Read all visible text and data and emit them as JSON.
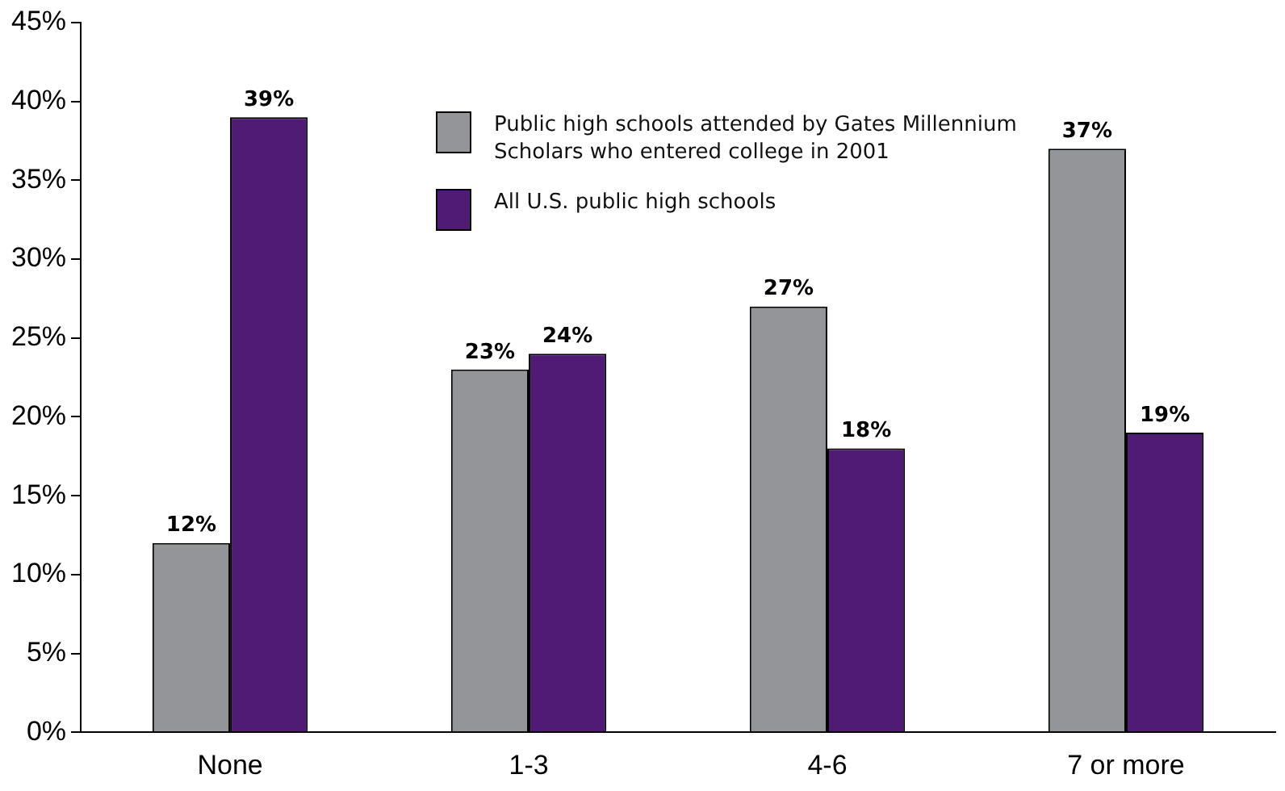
{
  "chart_data": {
    "type": "bar",
    "categories": [
      "None",
      "1-3",
      "4-6",
      "7 or more"
    ],
    "series": [
      {
        "name": "Public high schools attended by Gates Millennium Scholars who entered college in 2001",
        "color": "#939598",
        "values": [
          12,
          23,
          27,
          37
        ],
        "value_labels": [
          "12%",
          "23%",
          "27%",
          "37%"
        ]
      },
      {
        "name": "All U.S. public high schools",
        "color": "#4f1b74",
        "values": [
          39,
          24,
          18,
          19
        ],
        "value_labels": [
          "39%",
          "24%",
          "18%",
          "19%"
        ]
      }
    ],
    "ylim": [
      0,
      45
    ],
    "yticks": [
      {
        "value": 0,
        "label": "0%"
      },
      {
        "value": 5,
        "label": "5%"
      },
      {
        "value": 10,
        "label": "10%"
      },
      {
        "value": 15,
        "label": "15%"
      },
      {
        "value": 20,
        "label": "20%"
      },
      {
        "value": 25,
        "label": "25%"
      },
      {
        "value": 30,
        "label": "30%"
      },
      {
        "value": 35,
        "label": "35%"
      },
      {
        "value": 40,
        "label": "40%"
      },
      {
        "value": 45,
        "label": "45%"
      }
    ],
    "grid": false,
    "legend": "top"
  }
}
